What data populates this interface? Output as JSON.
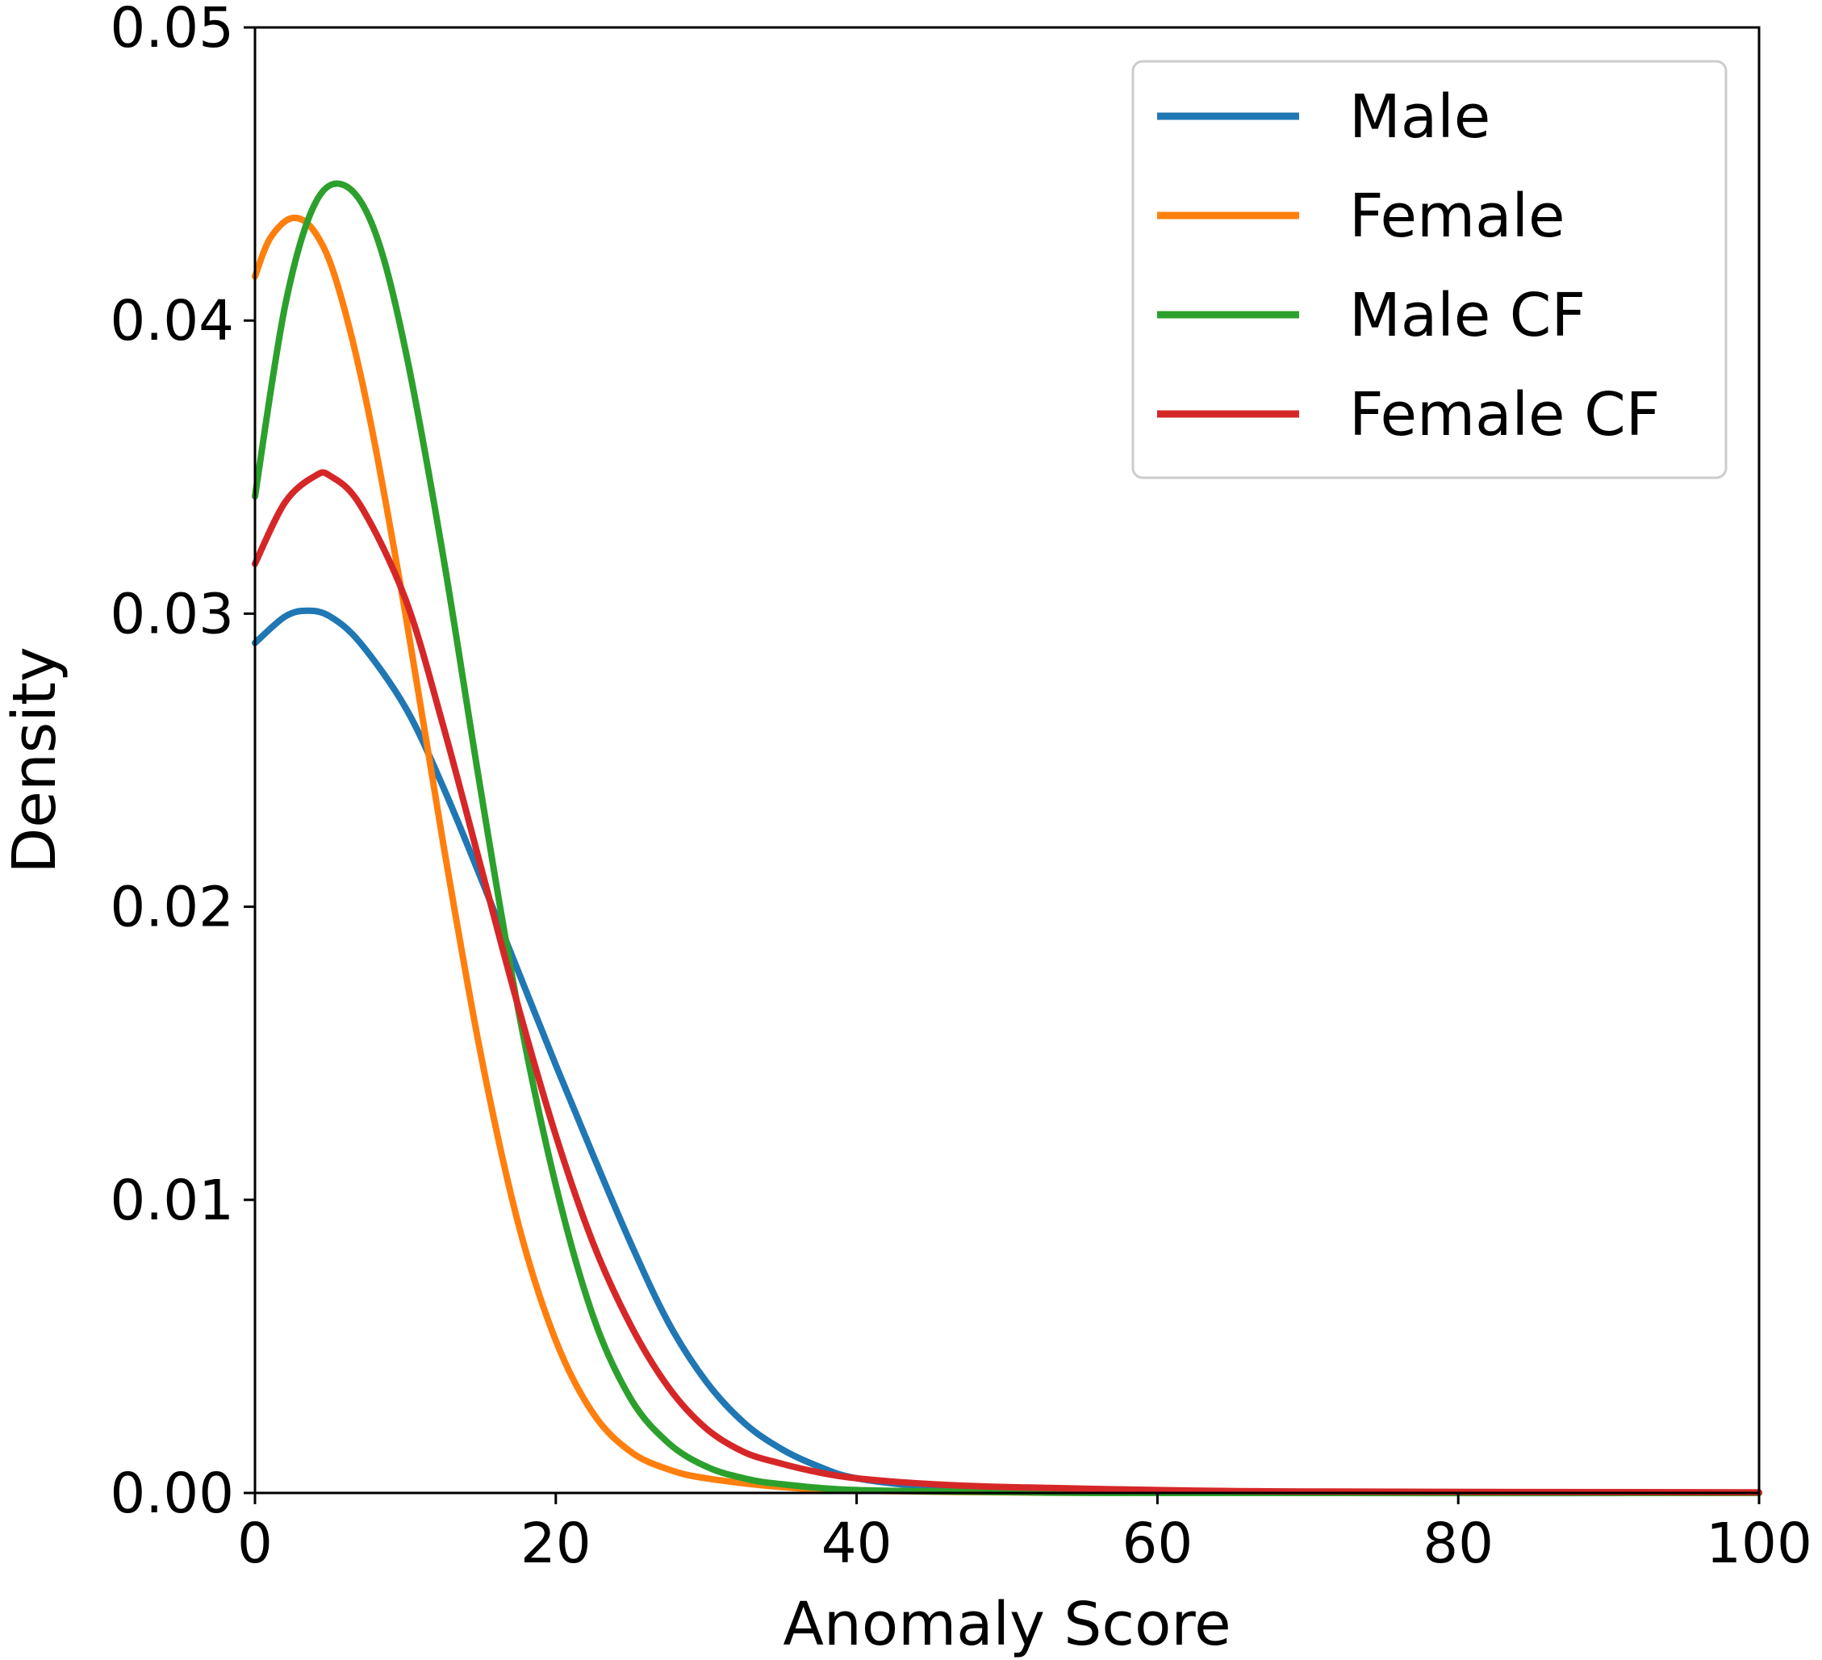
{
  "chart_data": {
    "type": "line",
    "title": "",
    "xlabel": "Anomaly Score",
    "ylabel": "Density",
    "xlim": [
      0,
      100
    ],
    "ylim": [
      0,
      0.05
    ],
    "xticks": [
      "0",
      "20",
      "40",
      "60",
      "80",
      "100"
    ],
    "yticks": [
      "0.00",
      "0.01",
      "0.02",
      "0.03",
      "0.04",
      "0.05"
    ],
    "grid": false,
    "legend_position": "top-right",
    "series": [
      {
        "name": "Male",
        "color": "#1f77b4",
        "points": [
          [
            0,
            0.029
          ],
          [
            2,
            0.0299
          ],
          [
            3.5,
            0.0301
          ],
          [
            5,
            0.0299
          ],
          [
            7,
            0.029
          ],
          [
            10,
            0.0268
          ],
          [
            12.5,
            0.0241
          ],
          [
            15,
            0.021
          ],
          [
            17.5,
            0.0178
          ],
          [
            20,
            0.0146
          ],
          [
            22.5,
            0.0115
          ],
          [
            25,
            0.0085
          ],
          [
            27.5,
            0.0058
          ],
          [
            30,
            0.0038
          ],
          [
            32.5,
            0.0024
          ],
          [
            35,
            0.0015
          ],
          [
            37.5,
            0.0009
          ],
          [
            40,
            0.0005
          ],
          [
            45,
            0.0002
          ],
          [
            50,
            0.0001
          ],
          [
            60,
            3e-05
          ],
          [
            80,
            0.0
          ],
          [
            100,
            0.0
          ]
        ]
      },
      {
        "name": "Female",
        "color": "#ff7f0e",
        "points": [
          [
            0,
            0.0415
          ],
          [
            1,
            0.0428
          ],
          [
            2.5,
            0.0435
          ],
          [
            4,
            0.043
          ],
          [
            5.5,
            0.0412
          ],
          [
            7.5,
            0.037
          ],
          [
            10,
            0.03
          ],
          [
            12.5,
            0.0222
          ],
          [
            15,
            0.015
          ],
          [
            17.5,
            0.0092
          ],
          [
            20,
            0.0052
          ],
          [
            22.5,
            0.0027
          ],
          [
            25,
            0.0014
          ],
          [
            27.5,
            0.0008
          ],
          [
            30,
            0.0005
          ],
          [
            35,
            0.0002
          ],
          [
            40,
            8e-05
          ],
          [
            50,
            2e-05
          ],
          [
            60,
            0.0
          ],
          [
            100,
            0.0
          ]
        ]
      },
      {
        "name": "Male CF",
        "color": "#2ca02c",
        "points": [
          [
            0,
            0.034
          ],
          [
            2,
            0.0405
          ],
          [
            4,
            0.044
          ],
          [
            6,
            0.0446
          ],
          [
            8,
            0.043
          ],
          [
            10,
            0.039
          ],
          [
            12.5,
            0.032
          ],
          [
            15,
            0.024
          ],
          [
            17.5,
            0.0165
          ],
          [
            20,
            0.0105
          ],
          [
            22.5,
            0.006
          ],
          [
            25,
            0.0032
          ],
          [
            27.5,
            0.0017
          ],
          [
            30,
            0.0009
          ],
          [
            32.5,
            0.0005
          ],
          [
            35,
            0.0003
          ],
          [
            40,
            0.0001
          ],
          [
            50,
            3e-05
          ],
          [
            60,
            0.0
          ],
          [
            100,
            0.0
          ]
        ]
      },
      {
        "name": "Female CF",
        "color": "#d62728",
        "points": [
          [
            0,
            0.0317
          ],
          [
            2,
            0.0338
          ],
          [
            4,
            0.0347
          ],
          [
            5,
            0.0347
          ],
          [
            7,
            0.0337
          ],
          [
            10,
            0.0305
          ],
          [
            12.5,
            0.0262
          ],
          [
            15,
            0.0214
          ],
          [
            17.5,
            0.0166
          ],
          [
            20,
            0.0122
          ],
          [
            22.5,
            0.0085
          ],
          [
            25,
            0.0057
          ],
          [
            27.5,
            0.0036
          ],
          [
            30,
            0.0022
          ],
          [
            32.5,
            0.0014
          ],
          [
            35,
            0.001
          ],
          [
            37.5,
            0.0007
          ],
          [
            40,
            0.0005
          ],
          [
            45,
            0.0003
          ],
          [
            50,
            0.0002
          ],
          [
            60,
            0.0001
          ],
          [
            70,
            5e-05
          ],
          [
            100,
            2e-05
          ]
        ]
      }
    ]
  }
}
